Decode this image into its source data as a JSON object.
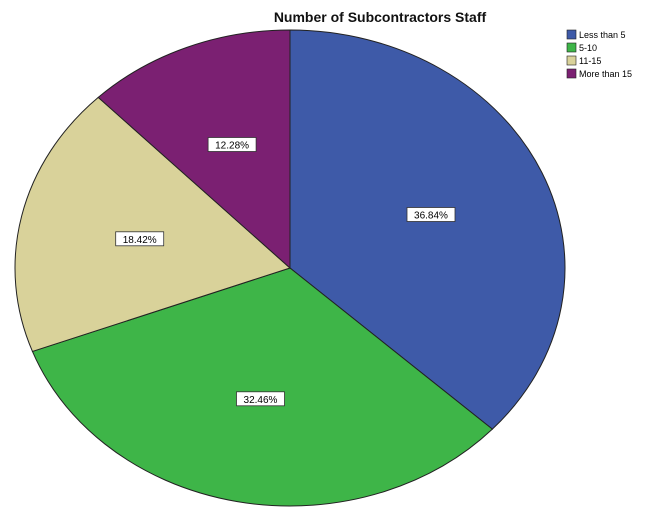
{
  "chart_data": {
    "type": "pie",
    "title": "Number  of Subcontractors Staff",
    "legend_position": "top-right",
    "slices": [
      {
        "name": "Less than 5",
        "value": 36.84,
        "label": "36.84%",
        "color": "#3e5aa8"
      },
      {
        "name": "5-10",
        "value": 32.46,
        "label": "32.46%",
        "color": "#3eb548"
      },
      {
        "name": "11-15",
        "value": 18.42,
        "label": "18.42%",
        "color": "#d9d29a"
      },
      {
        "name": "More than 15",
        "value": 12.28,
        "label": "12.28%",
        "color": "#7b2072"
      }
    ]
  }
}
